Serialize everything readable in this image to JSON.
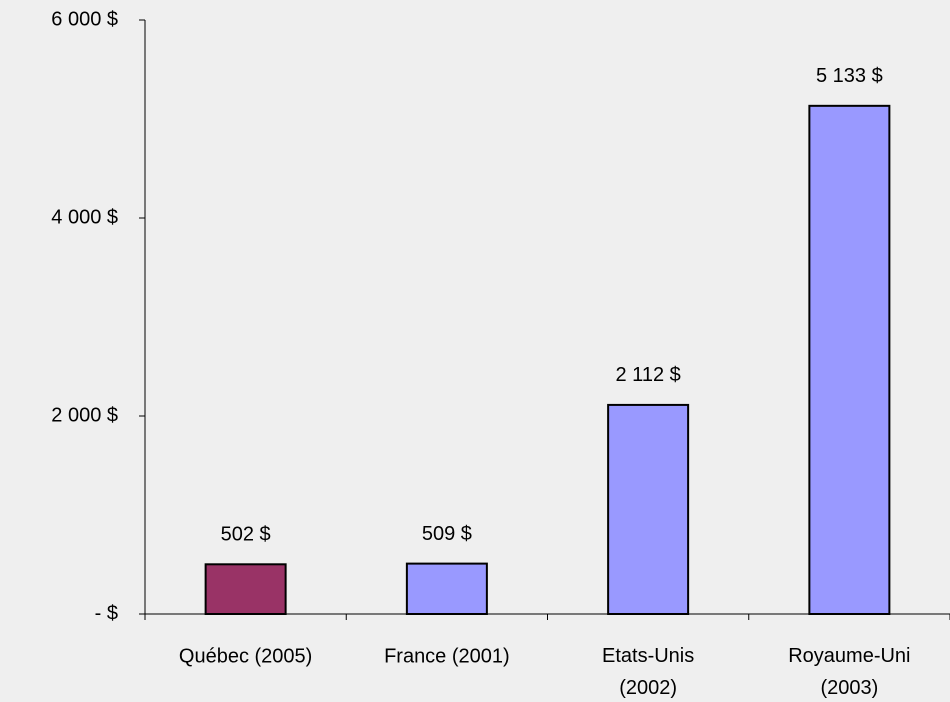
{
  "chart_data": {
    "type": "bar",
    "categories": [
      "Québec (2005)",
      "France (2001)",
      "Etats-Unis (2002)",
      "Royaume-Uni (2003)"
    ],
    "values": [
      502,
      509,
      2112,
      5133
    ],
    "value_labels": [
      "502 $",
      "509 $",
      "2 112 $",
      "5 133 $"
    ],
    "colors": [
      "#993366",
      "#9999ff",
      "#9999ff",
      "#9999ff"
    ],
    "ylim": [
      0,
      6000
    ],
    "yticks": [
      {
        "value": 0,
        "label": "- $"
      },
      {
        "value": 2000,
        "label": "2 000 $"
      },
      {
        "value": 4000,
        "label": "4 000 $"
      },
      {
        "value": 6000,
        "label": "6 000 $"
      }
    ],
    "grid": false
  }
}
